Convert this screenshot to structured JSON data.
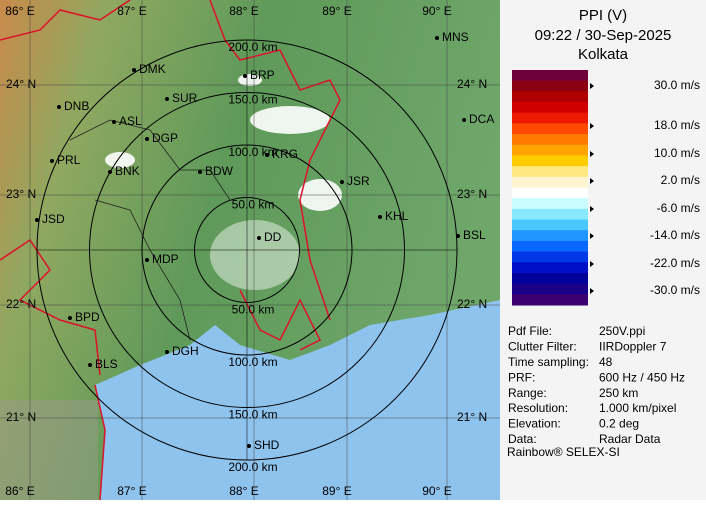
{
  "header": {
    "title": "PPI (V)",
    "time": "09:22 / 30-Sep-2025",
    "station": "Kolkata"
  },
  "map": {
    "lon_labels": [
      "86° E",
      "87° E",
      "88° E",
      "89° E",
      "90° E"
    ],
    "lat_labels": [
      "24° N",
      "23° N",
      "22° N",
      "21° N"
    ],
    "range_labels": [
      "50.0 km",
      "100.0 km",
      "150.0 km",
      "200.0 km"
    ],
    "cities": [
      "MNS",
      "DMK",
      "BRP",
      "DNB",
      "SUR",
      "ASL",
      "DGP",
      "KRG",
      "DCA",
      "PRL",
      "BNK",
      "BDW",
      "JSR",
      "KHL",
      "JSD",
      "BSL",
      "DD",
      "MDP",
      "BPD",
      "DGH",
      "BLS",
      "SHD"
    ]
  },
  "legend": {
    "labels": [
      "30.0 m/s",
      "18.0 m/s",
      "10.0 m/s",
      "2.0 m/s",
      "-6.0 m/s",
      "-14.0 m/s",
      "-22.0 m/s",
      "-30.0 m/s"
    ],
    "colors": [
      "#70003c",
      "#8c0010",
      "#b00000",
      "#d00000",
      "#ee1a00",
      "#ff4a00",
      "#ff7a00",
      "#ffa400",
      "#ffcc00",
      "#ffe880",
      "#fff4d0",
      "#ffffff",
      "#c8fcff",
      "#88e8ff",
      "#48c8ff",
      "#1e98ff",
      "#0a68ff",
      "#0038e8",
      "#0010c8",
      "#00009a",
      "#1a0088",
      "#3c0070"
    ]
  },
  "info": {
    "rows": [
      [
        "Pdf File:",
        "250V.ppi"
      ],
      [
        "Clutter Filter:",
        "IIRDoppler 7"
      ],
      [
        "Time sampling:",
        "48"
      ],
      [
        "PRF:",
        "600 Hz / 450 Hz"
      ],
      [
        "Range:",
        "250 km"
      ],
      [
        "Resolution:",
        "1.000 km/pixel"
      ],
      [
        "Elevation:",
        "0.2 deg"
      ],
      [
        "Data:",
        "Radar Data"
      ]
    ]
  },
  "footer": "Rainbow® SELEX-SI"
}
